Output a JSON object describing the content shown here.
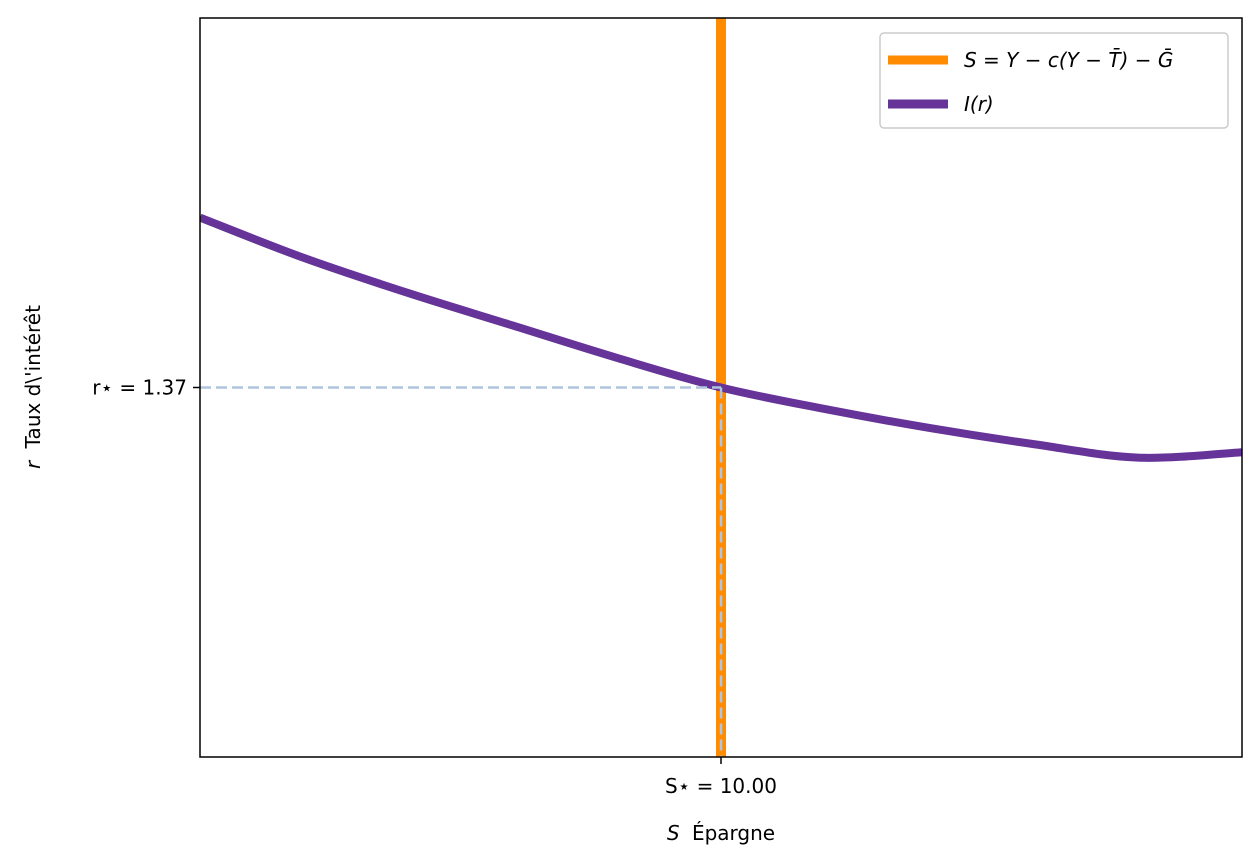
{
  "chart_data": {
    "type": "line",
    "title": "",
    "xlabel": {
      "var": "S",
      "text": "Épargne"
    },
    "ylabel": {
      "var": "r",
      "text": "Taux d\\'intérêt"
    },
    "xlim": [
      0,
      20
    ],
    "ylim": [
      0,
      2.74
    ],
    "xticks": [
      {
        "value": 10,
        "label": "S⋆ = 10.00"
      }
    ],
    "yticks": [
      {
        "value": 1.37,
        "label": "r⋆ = 1.37"
      }
    ],
    "grid": false,
    "legend": {
      "placement": "upper-right"
    },
    "equilibrium": {
      "x": 10,
      "y": 1.37
    },
    "series": [
      {
        "name": "S = Y − c(Y − T̄) − Ḡ",
        "color": "#ff8c00",
        "kind": "vertical",
        "x": [
          10,
          10
        ],
        "y": [
          0,
          2.74
        ]
      },
      {
        "name": "I(r)",
        "color": "#663399",
        "kind": "curve",
        "x": [
          0,
          2,
          4,
          6,
          8,
          10,
          12,
          14,
          16,
          18,
          20
        ],
        "y": [
          2.0,
          1.85,
          1.72,
          1.6,
          1.48,
          1.37,
          1.29,
          1.22,
          1.16,
          1.11,
          1.13
        ]
      }
    ],
    "guides": {
      "color": "#b0c4de"
    }
  }
}
